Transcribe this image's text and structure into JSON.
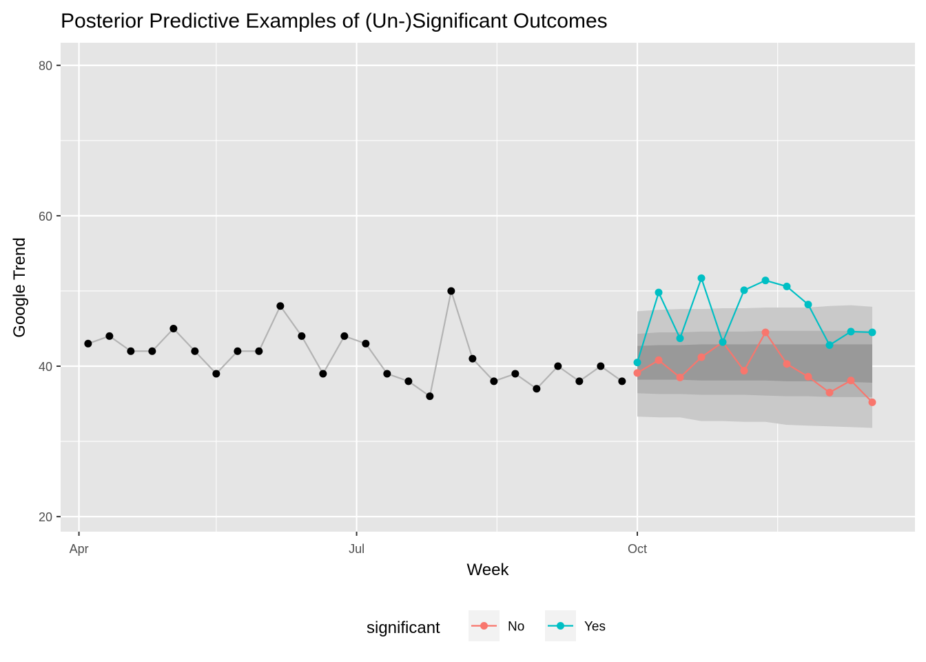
{
  "chart_data": {
    "type": "line",
    "title": "Posterior Predictive Examples of (Un-)Significant Outcomes",
    "xlabel": "Week",
    "ylabel": "Google Trend",
    "ylim": [
      18,
      83
    ],
    "yticks": [
      20,
      40,
      60,
      80
    ],
    "xlim": [
      "2018-03-26",
      "2018-12-31"
    ],
    "xticks": [
      {
        "label": "Apr",
        "date": "2018-04-01"
      },
      {
        "label": "Jul",
        "date": "2018-07-01"
      },
      {
        "label": "Oct",
        "date": "2018-10-01"
      }
    ],
    "x_minor_breaks": [
      "2018-05-16",
      "2018-08-16",
      "2018-11-16"
    ],
    "grid": true,
    "observed": {
      "dates": [
        "2018-04-04",
        "2018-04-11",
        "2018-04-18",
        "2018-04-25",
        "2018-05-02",
        "2018-05-09",
        "2018-05-16",
        "2018-05-23",
        "2018-05-30",
        "2018-06-06",
        "2018-06-13",
        "2018-06-20",
        "2018-06-27",
        "2018-07-04",
        "2018-07-11",
        "2018-07-18",
        "2018-07-25",
        "2018-08-01",
        "2018-08-08",
        "2018-08-15",
        "2018-08-22",
        "2018-08-29",
        "2018-09-05",
        "2018-09-12",
        "2018-09-19",
        "2018-09-26"
      ],
      "values": [
        43,
        44,
        42,
        42,
        45,
        42,
        39,
        42,
        42,
        48,
        44,
        39,
        44,
        43,
        39,
        38,
        36,
        50,
        41,
        38,
        39,
        37,
        40,
        38,
        40,
        38
      ],
      "point_color": "#000000",
      "line_color": "#b3b3b3"
    },
    "forecast_dates": [
      "2018-10-01",
      "2018-10-08",
      "2018-10-15",
      "2018-10-22",
      "2018-10-29",
      "2018-11-05",
      "2018-11-12",
      "2018-11-19",
      "2018-11-26",
      "2018-12-03",
      "2018-12-10",
      "2018-12-17"
    ],
    "bands": [
      {
        "level": "outer",
        "color": "#c9c9c9",
        "lower": [
          33.3,
          33.2,
          33.2,
          32.7,
          32.7,
          32.6,
          32.6,
          32.2,
          32.1,
          32.0,
          31.9,
          31.8
        ],
        "upper": [
          47.3,
          47.5,
          47.6,
          47.6,
          47.7,
          47.7,
          47.8,
          47.8,
          47.8,
          48.0,
          48.1,
          47.9
        ]
      },
      {
        "level": "middle",
        "color": "#b3b3b3",
        "lower": [
          36.4,
          36.3,
          36.3,
          36.2,
          36.2,
          36.2,
          36.1,
          36.0,
          36.0,
          35.9,
          35.9,
          35.9
        ],
        "upper": [
          44.3,
          44.5,
          44.5,
          44.6,
          44.6,
          44.6,
          44.7,
          44.7,
          44.7,
          44.7,
          44.7,
          44.7
        ]
      },
      {
        "level": "inner",
        "color": "#999999",
        "lower": [
          38.2,
          38.2,
          38.2,
          38.1,
          38.1,
          38.1,
          38.1,
          38.0,
          38.0,
          37.9,
          37.9,
          37.8
        ],
        "upper": [
          42.7,
          42.8,
          42.8,
          42.9,
          42.9,
          42.9,
          42.9,
          42.9,
          42.9,
          42.9,
          42.9,
          42.9
        ]
      }
    ],
    "series": [
      {
        "name": "No",
        "color": "#f8766d",
        "values": [
          39.1,
          40.8,
          38.5,
          41.2,
          43.2,
          39.4,
          44.5,
          40.3,
          38.6,
          36.5,
          38.1,
          35.2
        ]
      },
      {
        "name": "Yes",
        "color": "#00bfc4",
        "values": [
          40.5,
          49.8,
          43.7,
          51.7,
          43.2,
          50.1,
          51.4,
          50.6,
          48.2,
          42.8,
          44.6,
          44.5
        ]
      }
    ],
    "legend": {
      "title": "significant",
      "position": "bottom"
    },
    "panel_background": "#e5e5e5",
    "grid_color": "#ffffff"
  }
}
